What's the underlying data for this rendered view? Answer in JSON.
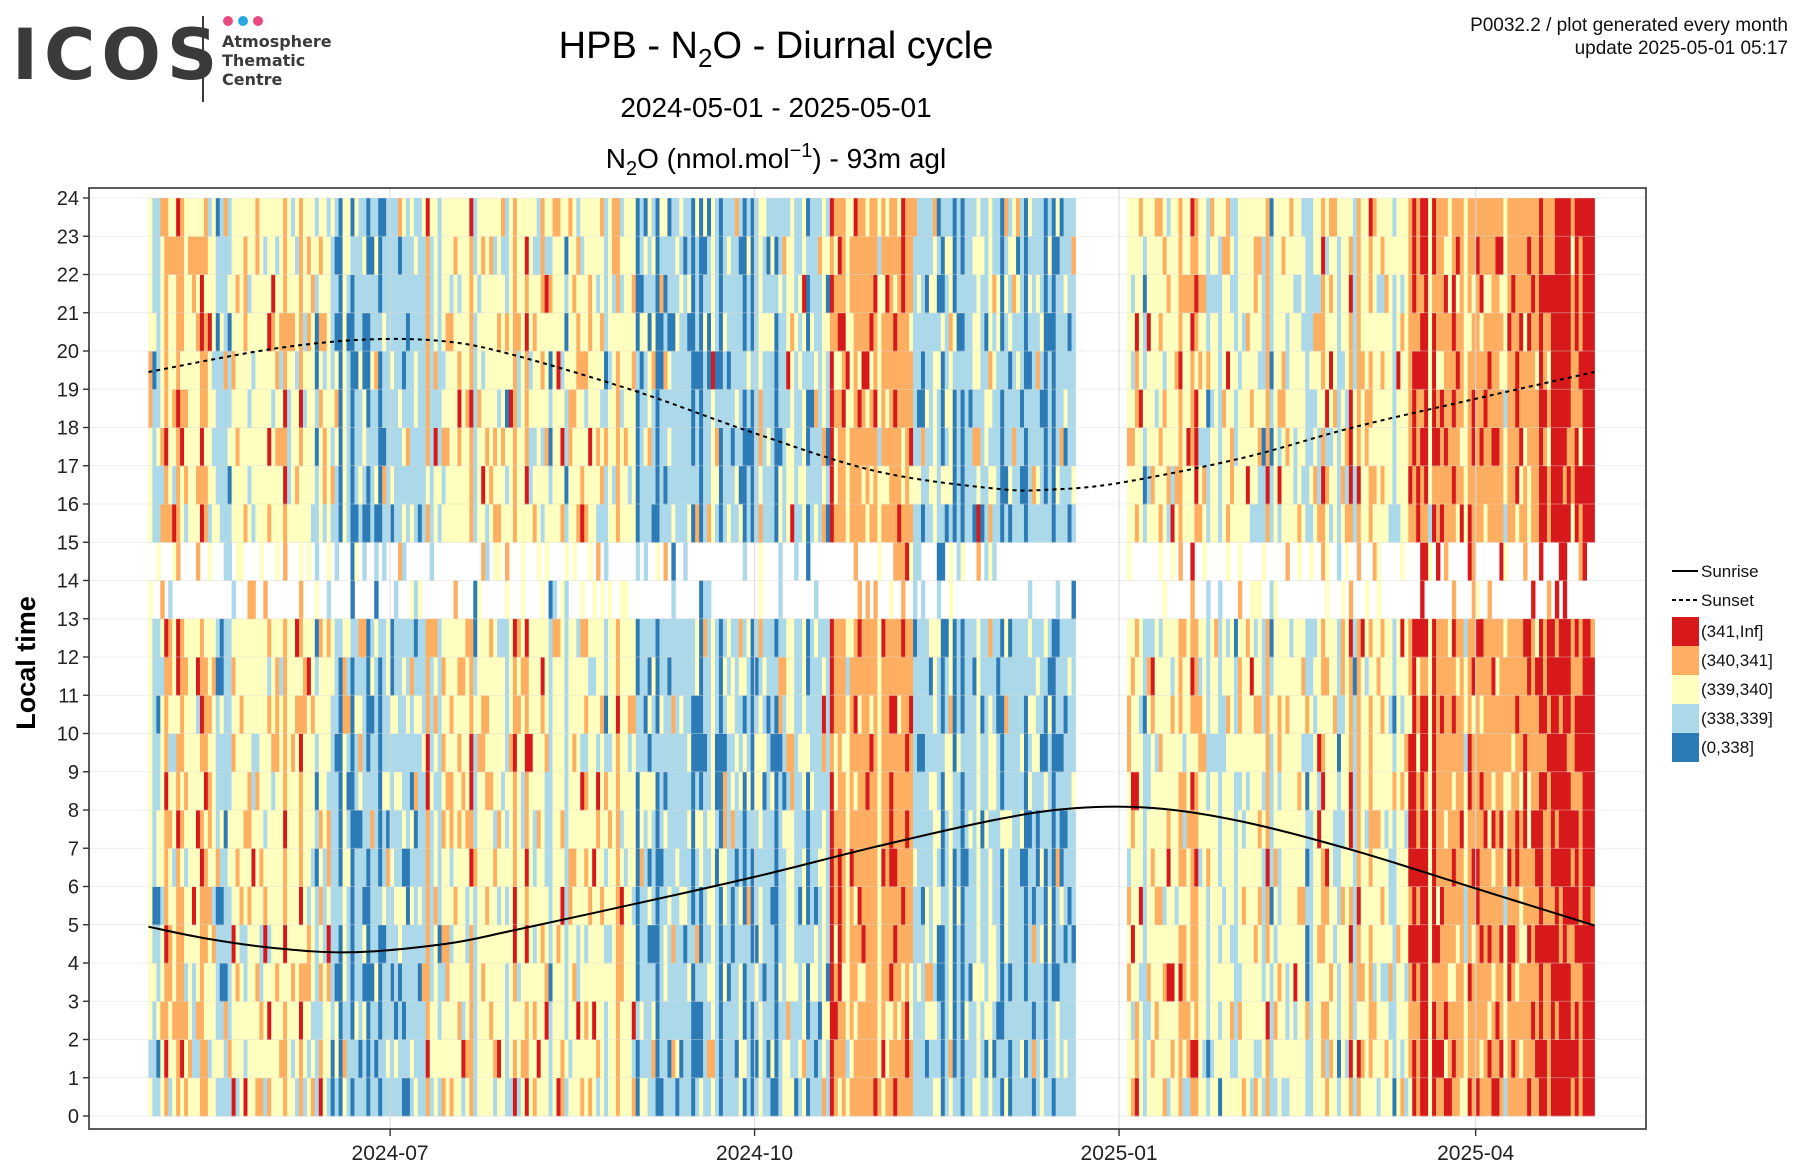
{
  "logo": {
    "wordmark": "ICOS",
    "subtitle_lines": [
      "Atmosphere",
      "Thematic",
      "Centre"
    ],
    "dot_colors": [
      "#e84a7f",
      "#2aa7e0",
      "#e84a7f"
    ]
  },
  "meta": {
    "line1": "P0032.2 / plot generated every month",
    "line2": "update  2025-05-01 05:17"
  },
  "chart_data": {
    "type": "heatmap",
    "title_parts": [
      "HPB - N",
      "2",
      "O - Diurnal cycle"
    ],
    "subtitle": "2024-05-01 - 2025-05-01",
    "variable_label_parts": [
      "N",
      "2",
      "O (nmol.mol",
      "−1",
      ") - 93m agl"
    ],
    "ylabel": "Local time",
    "xlabel": "",
    "x_range": [
      "2024-05-01",
      "2025-05-01"
    ],
    "x_ticks": [
      {
        "date": "2024-07-01",
        "label": "2024-07"
      },
      {
        "date": "2024-10-01",
        "label": "2024-10"
      },
      {
        "date": "2025-01-01",
        "label": "2025-01"
      },
      {
        "date": "2025-04-01",
        "label": "2025-04"
      }
    ],
    "ylim": [
      0,
      24
    ],
    "y_ticks": [
      0,
      1,
      2,
      3,
      4,
      5,
      6,
      7,
      8,
      9,
      10,
      11,
      12,
      13,
      14,
      15,
      16,
      17,
      18,
      19,
      20,
      21,
      22,
      23,
      24
    ],
    "grid": true,
    "data_gaps": [
      {
        "start": "2024-12-21",
        "end": "2025-01-03"
      }
    ],
    "missing_hours_most_days": [
      13,
      14
    ],
    "color_classes": [
      {
        "label": "(341,Inf]",
        "color": "#d7191c"
      },
      {
        "label": "(340,341]",
        "color": "#fdae61"
      },
      {
        "label": "(339,340]",
        "color": "#ffffbf"
      },
      {
        "label": "(338,339]",
        "color": "#abd9e9"
      },
      {
        "label": "(0,338]",
        "color": "#2c7bb6"
      }
    ],
    "dominant_class_by_period": [
      {
        "start": "2024-05-01",
        "end": "2024-06-15",
        "class": "(339,340]"
      },
      {
        "start": "2024-06-15",
        "end": "2024-07-10",
        "class": "(338,339]"
      },
      {
        "start": "2024-07-10",
        "end": "2024-09-01",
        "class": "(339,340]"
      },
      {
        "start": "2024-09-01",
        "end": "2024-10-20",
        "class": "(338,339]"
      },
      {
        "start": "2024-10-20",
        "end": "2024-11-10",
        "class": "(340,341]"
      },
      {
        "start": "2024-11-10",
        "end": "2024-12-21",
        "class": "(338,339]"
      },
      {
        "start": "2025-01-03",
        "end": "2025-02-10",
        "class": "(339,340]"
      },
      {
        "start": "2025-02-10",
        "end": "2025-03-15",
        "class": "(339,340]"
      },
      {
        "start": "2025-03-15",
        "end": "2025-04-20",
        "class": "(340,341]"
      },
      {
        "start": "2025-04-20",
        "end": "2025-05-01",
        "class": "(341,Inf]"
      }
    ],
    "series": [
      {
        "name": "Sunrise",
        "line": "solid",
        "points": [
          {
            "x": "2024-05-01",
            "y": 4.95
          },
          {
            "x": "2024-05-15",
            "y": 4.65
          },
          {
            "x": "2024-06-01",
            "y": 4.4
          },
          {
            "x": "2024-06-21",
            "y": 4.28
          },
          {
            "x": "2024-07-15",
            "y": 4.5
          },
          {
            "x": "2024-08-01",
            "y": 4.85
          },
          {
            "x": "2024-09-01",
            "y": 5.55
          },
          {
            "x": "2024-10-01",
            "y": 6.25
          },
          {
            "x": "2024-11-01",
            "y": 7.05
          },
          {
            "x": "2024-12-01",
            "y": 7.75
          },
          {
            "x": "2024-12-21",
            "y": 8.05
          },
          {
            "x": "2025-01-10",
            "y": 8.05
          },
          {
            "x": "2025-02-01",
            "y": 7.7
          },
          {
            "x": "2025-03-01",
            "y": 6.95
          },
          {
            "x": "2025-04-01",
            "y": 5.95
          },
          {
            "x": "2025-05-01",
            "y": 4.98
          }
        ]
      },
      {
        "name": "Sunset",
        "line": "dashed",
        "points": [
          {
            "x": "2024-05-01",
            "y": 19.45
          },
          {
            "x": "2024-06-01",
            "y": 20.05
          },
          {
            "x": "2024-06-25",
            "y": 20.3
          },
          {
            "x": "2024-07-15",
            "y": 20.25
          },
          {
            "x": "2024-08-01",
            "y": 19.9
          },
          {
            "x": "2024-09-01",
            "y": 18.95
          },
          {
            "x": "2024-10-01",
            "y": 17.85
          },
          {
            "x": "2024-11-01",
            "y": 16.85
          },
          {
            "x": "2024-12-01",
            "y": 16.4
          },
          {
            "x": "2024-12-15",
            "y": 16.38
          },
          {
            "x": "2025-01-01",
            "y": 16.55
          },
          {
            "x": "2025-02-01",
            "y": 17.2
          },
          {
            "x": "2025-03-01",
            "y": 18.0
          },
          {
            "x": "2025-04-01",
            "y": 18.75
          },
          {
            "x": "2025-05-01",
            "y": 19.45
          }
        ]
      }
    ],
    "legend": {
      "placement": "right"
    }
  }
}
